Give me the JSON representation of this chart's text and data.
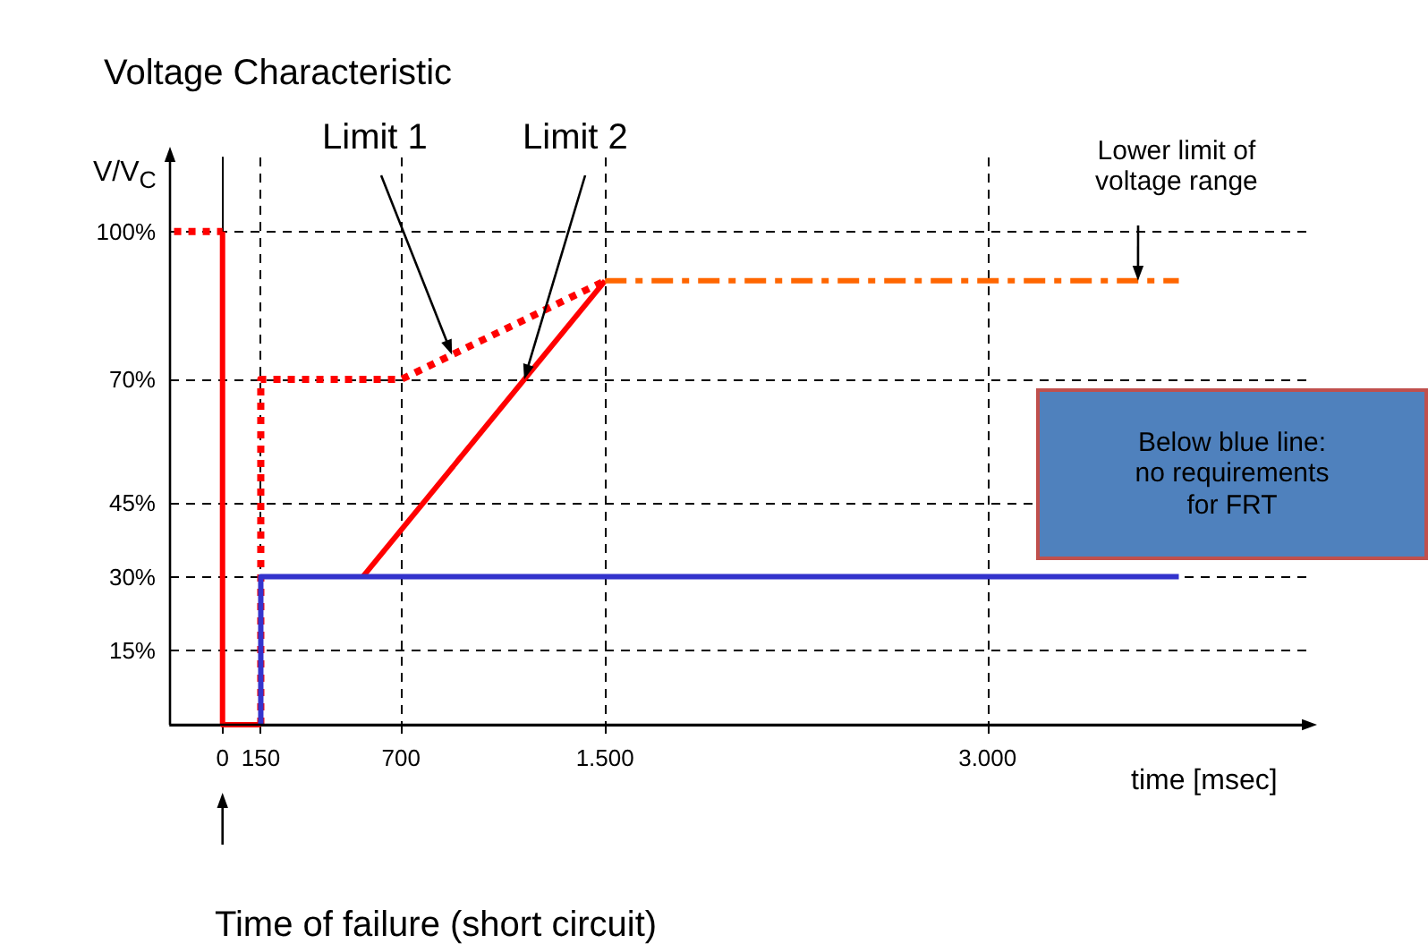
{
  "chart_data": {
    "type": "line",
    "title": "Voltage Characteristic",
    "xlabel": "time [msec]",
    "ylabel": "V/V$_{C}$",
    "xlim": [
      -206,
      4250
    ],
    "ylim": [
      0,
      115
    ],
    "xticks": [
      0,
      150,
      700,
      {
        "value": 1500,
        "label": "1.500"
      },
      {
        "value": 3000,
        "label": "3.000"
      }
    ],
    "yticks": [
      {
        "value": 15,
        "label": "15%"
      },
      {
        "value": 30,
        "label": "30%"
      },
      {
        "value": 45,
        "label": "45%"
      },
      {
        "value": 70,
        "label": "70%"
      },
      {
        "value": 100,
        "label": "100%"
      }
    ],
    "grid": true,
    "marker": "none",
    "line_style": "solid",
    "series": [
      {
        "color": "#ff0000",
        "x": [
          0,
          0,
          0,
          150
        ],
        "values": [
          100,
          100,
          0,
          0
        ]
      },
      {
        "color": "#ff0000",
        "line_style": "dotted",
        "x": [
          -190,
          0
        ],
        "values": [
          100,
          100
        ]
      },
      {
        "color": "#ff0000",
        "line_style": "dotted",
        "x": [
          150,
          150,
          700,
          1500
        ],
        "values": [
          0,
          70,
          70,
          90
        ]
      },
      {
        "color": "#ff0000",
        "x": [
          550,
          1500
        ],
        "values": [
          30,
          90
        ]
      },
      {
        "color": "#ff6600",
        "line_style": "dashed",
        "x": [
          1500,
          3750
        ],
        "values": [
          90,
          90
        ]
      },
      {
        "color": "#3333cc",
        "x": [
          150,
          150,
          3750
        ],
        "values": [
          0,
          30,
          30
        ]
      }
    ],
    "annotations": [
      {
        "text": "Limit 1",
        "x": 900,
        "y": 75
      },
      {
        "text": "Limit 2",
        "x": 1183,
        "y": 70
      },
      {
        "text": "Lower limit of\nvoltage range",
        "x": 3590,
        "y": 90
      },
      "Below blue line:\nno requirements\nfor FRT",
      "Time of failure (short circuit)"
    ]
  }
}
